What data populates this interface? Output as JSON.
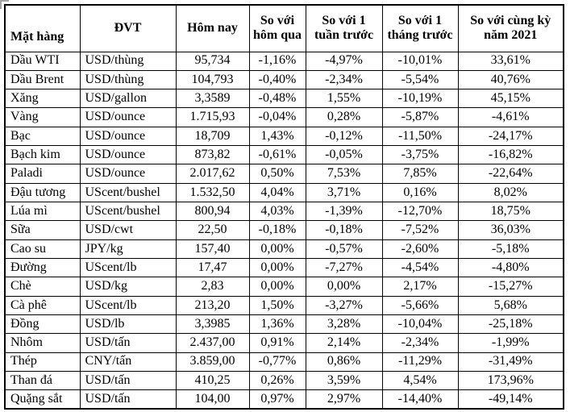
{
  "colors": {
    "background": "#ffffff",
    "border": "#000000",
    "text": "#000000",
    "handle_mark": "#a6a6a6"
  },
  "table": {
    "columns": [
      {
        "key": "item",
        "label": "Mặt hàng"
      },
      {
        "key": "unit",
        "label": "ĐVT"
      },
      {
        "key": "today",
        "label": "Hôm nay"
      },
      {
        "key": "vs-yesterday",
        "label": "So với hôm qua"
      },
      {
        "key": "vs-week",
        "label": "So với 1 tuần trước"
      },
      {
        "key": "vs-month",
        "label": "So với 1 tháng trước"
      },
      {
        "key": "vs-2021",
        "label": "So với cùng kỳ năm 2021"
      }
    ],
    "rows": [
      [
        "Dầu WTI",
        "USD/thùng",
        "95,734",
        "-1,16%",
        "-4,97%",
        "-10,01%",
        "33,61%"
      ],
      [
        "Dầu Brent",
        "USD/thùng",
        "104,793",
        "-0,40%",
        "-2,34%",
        "-5,54%",
        "40,76%"
      ],
      [
        "Xăng",
        "USD/gallon",
        "3,3589",
        "-0,48%",
        "1,55%",
        "-10,19%",
        "45,15%"
      ],
      [
        "Vàng",
        "USD/ounce",
        "1.715,93",
        "-0,04%",
        "0,28%",
        "-5,87%",
        "-4,61%"
      ],
      [
        "Bạc",
        "USD/ounce",
        "18,709",
        "1,43%",
        "-0,12%",
        "-11,50%",
        "-24,17%"
      ],
      [
        "Bạch kim",
        "USD/ounce",
        "873,82",
        "-0,61%",
        "-0,05%",
        "-3,75%",
        "-16,82%"
      ],
      [
        "Paladi",
        "USD/ounce",
        "2.017,62",
        "0,50%",
        "7,53%",
        "7,85%",
        "-22,64%"
      ],
      [
        "Đậu tương",
        "UScent/bushel",
        "1.532,50",
        "4,04%",
        "3,71%",
        "0,16%",
        "8,02%"
      ],
      [
        "Lúa mì",
        "UScent/bushel",
        "800,94",
        "4,03%",
        "-1,39%",
        "-12,70%",
        "18,75%"
      ],
      [
        "Sữa",
        "USD/cwt",
        "22,50",
        "-0,18%",
        "-0,18%",
        "-7,52%",
        "36,03%"
      ],
      [
        "Cao su",
        "JPY/kg",
        "157,40",
        "0,00%",
        "-0,57%",
        "-2,60%",
        "-5,18%"
      ],
      [
        "Đường",
        "UScent/lb",
        "17,47",
        "0,00%",
        "-7,27%",
        "-4,54%",
        "-4,80%"
      ],
      [
        "Chè",
        "USD/kg",
        "2,83",
        "0,00%",
        "0,00%",
        "2,17%",
        "-15,27%"
      ],
      [
        "Cà phê",
        "UScent/lb",
        "213,20",
        "1,50%",
        "-3,27%",
        "-5,66%",
        "5,68%"
      ],
      [
        "Đồng",
        "USD/lb",
        "3,3985",
        "1,36%",
        "3,28%",
        "-10,04%",
        "-25,18%"
      ],
      [
        "Nhôm",
        "USD/tấn",
        "2.437,00",
        "0,91%",
        "2,14%",
        "-2,34%",
        "-1,99%"
      ],
      [
        "Thép",
        "CNY/tấn",
        "3.859,00",
        "-0,77%",
        "0,86%",
        "-11,29%",
        "-31,49%"
      ],
      [
        "Than đá",
        "USD/tấn",
        "410,25",
        "0,26%",
        "3,59%",
        "4,54%",
        "173,96%"
      ],
      [
        "Quặng sắt",
        "USD/tấn",
        "104,00",
        "0,97%",
        "2,97%",
        "-14,40%",
        "-49,14%"
      ]
    ]
  }
}
